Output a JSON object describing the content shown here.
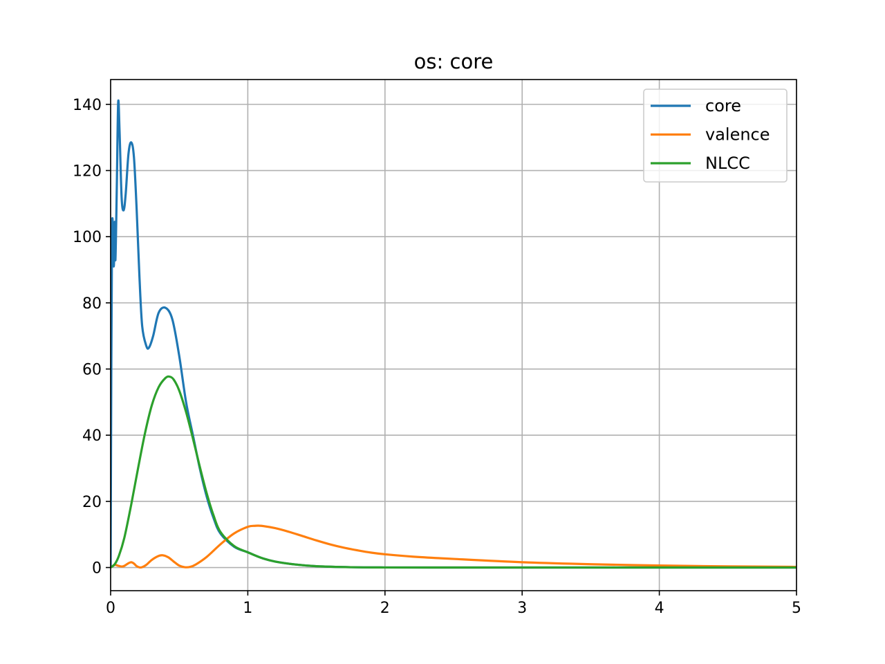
{
  "chart_data": {
    "type": "line",
    "title": "os: core",
    "xlabel": "",
    "ylabel": "",
    "xlim": [
      0,
      5
    ],
    "ylim": [
      -7,
      147.5
    ],
    "xticks": [
      0,
      1,
      2,
      3,
      4,
      5
    ],
    "xtick_labels": [
      "0",
      "1",
      "2",
      "3",
      "4",
      "5"
    ],
    "yticks": [
      0,
      20,
      40,
      60,
      80,
      100,
      120,
      140
    ],
    "ytick_labels": [
      "0",
      "20",
      "40",
      "60",
      "80",
      "100",
      "120",
      "140"
    ],
    "grid": true,
    "legend": "top-right",
    "series": [
      {
        "name": "core",
        "color": "#1f77b4",
        "points": [
          [
            0,
            0
          ],
          [
            0.005,
            60
          ],
          [
            0.01,
            100
          ],
          [
            0.015,
            104.5
          ],
          [
            0.02,
            92.5
          ],
          [
            0.025,
            92.5
          ],
          [
            0.03,
            104.5
          ],
          [
            0.035,
            93
          ],
          [
            0.045,
            115
          ],
          [
            0.055,
            140.5
          ],
          [
            0.065,
            132
          ],
          [
            0.08,
            112
          ],
          [
            0.095,
            108
          ],
          [
            0.11,
            113
          ],
          [
            0.13,
            125
          ],
          [
            0.15,
            128.5
          ],
          [
            0.17,
            124
          ],
          [
            0.19,
            108
          ],
          [
            0.21,
            88
          ],
          [
            0.23,
            73
          ],
          [
            0.26,
            67
          ],
          [
            0.28,
            66.5
          ],
          [
            0.31,
            70
          ],
          [
            0.35,
            77
          ],
          [
            0.4,
            78.5
          ],
          [
            0.45,
            75
          ],
          [
            0.5,
            64
          ],
          [
            0.55,
            50
          ],
          [
            0.6,
            40
          ],
          [
            0.65,
            30
          ],
          [
            0.7,
            21.5
          ],
          [
            0.75,
            15
          ],
          [
            0.8,
            10.3
          ],
          [
            0.9,
            6.3
          ],
          [
            1.0,
            4.6
          ],
          [
            1.1,
            2.9
          ],
          [
            1.2,
            1.8
          ],
          [
            1.35,
            0.9
          ],
          [
            1.5,
            0.4
          ],
          [
            1.75,
            0.1
          ],
          [
            2.0,
            0.02
          ],
          [
            2.5,
            0
          ],
          [
            3,
            0
          ],
          [
            4,
            0
          ],
          [
            5,
            0
          ]
        ]
      },
      {
        "name": "valence",
        "color": "#ff7f0e",
        "points": [
          [
            0,
            0
          ],
          [
            0.03,
            0.8
          ],
          [
            0.05,
            0.6
          ],
          [
            0.08,
            0.3
          ],
          [
            0.1,
            0.5
          ],
          [
            0.13,
            1.3
          ],
          [
            0.15,
            1.6
          ],
          [
            0.17,
            1.2
          ],
          [
            0.19,
            0.4
          ],
          [
            0.21,
            0.05
          ],
          [
            0.23,
            0.1
          ],
          [
            0.26,
            0.8
          ],
          [
            0.3,
            2.3
          ],
          [
            0.35,
            3.5
          ],
          [
            0.38,
            3.7
          ],
          [
            0.42,
            3.1
          ],
          [
            0.46,
            1.8
          ],
          [
            0.5,
            0.6
          ],
          [
            0.54,
            0.1
          ],
          [
            0.58,
            0.2
          ],
          [
            0.62,
            0.9
          ],
          [
            0.7,
            3.2
          ],
          [
            0.8,
            7
          ],
          [
            0.9,
            10.3
          ],
          [
            1.0,
            12.3
          ],
          [
            1.05,
            12.6
          ],
          [
            1.1,
            12.6
          ],
          [
            1.2,
            11.9
          ],
          [
            1.3,
            10.8
          ],
          [
            1.4,
            9.5
          ],
          [
            1.5,
            8.2
          ],
          [
            1.6,
            7
          ],
          [
            1.7,
            6
          ],
          [
            1.8,
            5.2
          ],
          [
            1.9,
            4.5
          ],
          [
            2.0,
            4
          ],
          [
            2.2,
            3.3
          ],
          [
            2.5,
            2.6
          ],
          [
            3.0,
            1.6
          ],
          [
            3.5,
            1.0
          ],
          [
            4.0,
            0.6
          ],
          [
            4.5,
            0.35
          ],
          [
            5.0,
            0.2
          ]
        ]
      },
      {
        "name": "NLCC",
        "color": "#2ca02c",
        "points": [
          [
            0,
            0
          ],
          [
            0.03,
            1
          ],
          [
            0.06,
            3.5
          ],
          [
            0.1,
            9
          ],
          [
            0.15,
            19
          ],
          [
            0.2,
            30
          ],
          [
            0.25,
            40.5
          ],
          [
            0.3,
            49
          ],
          [
            0.35,
            54.5
          ],
          [
            0.4,
            57.3
          ],
          [
            0.43,
            57.7
          ],
          [
            0.46,
            56.8
          ],
          [
            0.5,
            53.5
          ],
          [
            0.55,
            47
          ],
          [
            0.6,
            39
          ],
          [
            0.65,
            30.5
          ],
          [
            0.7,
            22.5
          ],
          [
            0.75,
            15.8
          ],
          [
            0.8,
            10.8
          ],
          [
            0.9,
            6.5
          ],
          [
            1.0,
            4.6
          ],
          [
            1.1,
            2.9
          ],
          [
            1.2,
            1.8
          ],
          [
            1.35,
            0.9
          ],
          [
            1.5,
            0.4
          ],
          [
            1.75,
            0.1
          ],
          [
            2.0,
            0.02
          ],
          [
            2.5,
            0
          ],
          [
            3,
            0
          ],
          [
            4,
            0
          ],
          [
            5,
            0
          ]
        ]
      }
    ]
  }
}
